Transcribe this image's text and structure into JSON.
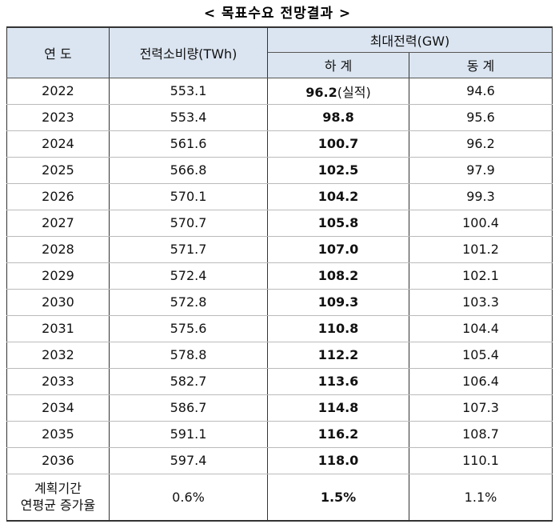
{
  "title": "< 목표수요 전망결과 >",
  "table": {
    "header": {
      "year": "연 도",
      "consumption": "전력소비량(TWh)",
      "peak": "최대전력(GW)",
      "summer": "하 계",
      "winter": "동 계"
    },
    "actual_note": "(실적)",
    "rows": [
      [
        "2022",
        "553.1",
        "96.2",
        "94.6"
      ],
      [
        "2023",
        "553.4",
        "98.8",
        "95.6"
      ],
      [
        "2024",
        "561.6",
        "100.7",
        "96.2"
      ],
      [
        "2025",
        "566.8",
        "102.5",
        "97.9"
      ],
      [
        "2026",
        "570.1",
        "104.2",
        "99.3"
      ],
      [
        "2027",
        "570.7",
        "105.8",
        "100.4"
      ],
      [
        "2028",
        "571.7",
        "107.0",
        "101.2"
      ],
      [
        "2029",
        "572.4",
        "108.2",
        "102.1"
      ],
      [
        "2030",
        "572.8",
        "109.3",
        "103.3"
      ],
      [
        "2031",
        "575.6",
        "110.8",
        "104.4"
      ],
      [
        "2032",
        "578.8",
        "112.2",
        "105.4"
      ],
      [
        "2033",
        "582.7",
        "113.6",
        "106.4"
      ],
      [
        "2034",
        "586.7",
        "114.8",
        "107.3"
      ],
      [
        "2035",
        "591.1",
        "116.2",
        "108.7"
      ],
      [
        "2036",
        "597.4",
        "118.0",
        "110.1"
      ]
    ],
    "average": {
      "label": [
        "계획기간",
        "연평균 증가율"
      ],
      "consumption": "0.6%",
      "summer": "1.5%",
      "winter": "1.1%"
    }
  }
}
